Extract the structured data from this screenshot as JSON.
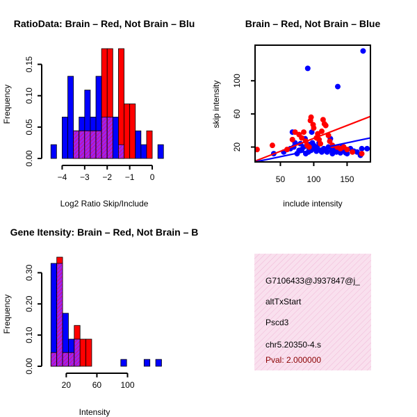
{
  "colors": {
    "red": "#ff0000",
    "blue": "#0000ff",
    "purple": "#a020f0",
    "info_bg": "#f7d7ea",
    "pval": "#8b0000"
  },
  "chart_data": [
    {
      "type": "bar",
      "title": "RatioData: Brain – Red, Not Brain – Blu",
      "xlabel": "Log2 Ratio Skip/Include",
      "ylabel": "Frequency",
      "xlim": [
        -4.6,
        0.4
      ],
      "ylim": [
        0,
        0.175
      ],
      "xticks": [
        -4,
        -3,
        -2,
        -1,
        0
      ],
      "xtick_labels": [
        "−4",
        "−3",
        "−2",
        "−1",
        "0"
      ],
      "yticks": [
        0.0,
        0.05,
        0.1,
        0.15
      ],
      "ytick_labels": [
        "0.00",
        "0.05",
        "0.10",
        "0.15"
      ],
      "bin_width": 0.25,
      "bin_start": -4.5,
      "series": [
        {
          "name": "Not Brain",
          "color": "blue",
          "values": [
            0.022,
            0,
            0.066,
            0.131,
            0.044,
            0.066,
            0.109,
            0.066,
            0.131,
            0.066,
            0.066,
            0.066,
            0.022,
            0,
            0,
            0.044,
            0.022,
            0,
            0,
            0.022
          ]
        },
        {
          "name": "Brain",
          "color": "red",
          "values": [
            0,
            0,
            0,
            0,
            0.044,
            0.044,
            0.044,
            0.044,
            0.044,
            0.175,
            0.175,
            0,
            0.175,
            0.087,
            0.087,
            0,
            0,
            0.044,
            0,
            0
          ]
        }
      ]
    },
    {
      "type": "scatter",
      "title": "Brain – Red, Not Brain – Blue",
      "xlabel": "include intensity",
      "ylabel": "skip intensity",
      "xlim": [
        12,
        185
      ],
      "ylim": [
        2,
        143
      ],
      "xticks": [
        50,
        100,
        150
      ],
      "xtick_labels": [
        "50",
        "100",
        "150"
      ],
      "yticks": [
        20,
        60,
        100
      ],
      "ytick_labels": [
        "20",
        "60",
        "100"
      ],
      "series": [
        {
          "name": "Brain",
          "color": "red",
          "points": [
            [
              15,
              17
            ],
            [
              38,
              22
            ],
            [
              60,
              17
            ],
            [
              68,
              29
            ],
            [
              72,
              38
            ],
            [
              78,
              35
            ],
            [
              82,
              31
            ],
            [
              85,
              38
            ],
            [
              88,
              27
            ],
            [
              90,
              22
            ],
            [
              93,
              20
            ],
            [
              95,
              52
            ],
            [
              96,
              56
            ],
            [
              99,
              47
            ],
            [
              100,
              43
            ],
            [
              104,
              31
            ],
            [
              106,
              36
            ],
            [
              108,
              29
            ],
            [
              110,
              24
            ],
            [
              112,
              39
            ],
            [
              114,
              53
            ],
            [
              116,
              48
            ],
            [
              118,
              46
            ],
            [
              122,
              34
            ],
            [
              124,
              27
            ],
            [
              128,
              22
            ],
            [
              135,
              20
            ],
            [
              140,
              18
            ],
            [
              145,
              20
            ],
            [
              150,
              17
            ],
            [
              158,
              14
            ],
            [
              172,
              12
            ]
          ],
          "fit": [
            [
              12,
              3
            ],
            [
              185,
              57
            ]
          ]
        },
        {
          "name": "Not Brain",
          "color": "blue",
          "points": [
            [
              40,
              12
            ],
            [
              55,
              14
            ],
            [
              65,
              18
            ],
            [
              68,
              38
            ],
            [
              70,
              20
            ],
            [
              72,
              25
            ],
            [
              75,
              12
            ],
            [
              78,
              16
            ],
            [
              80,
              24
            ],
            [
              82,
              17
            ],
            [
              85,
              20
            ],
            [
              87,
              30
            ],
            [
              88,
              12
            ],
            [
              90,
              22
            ],
            [
              91,
              115
            ],
            [
              92,
              14
            ],
            [
              93,
              18
            ],
            [
              94,
              23
            ],
            [
              95,
              20
            ],
            [
              96,
              16
            ],
            [
              97,
              38
            ],
            [
              98,
              25
            ],
            [
              100,
              22
            ],
            [
              102,
              18
            ],
            [
              104,
              15
            ],
            [
              105,
              20
            ],
            [
              108,
              25
            ],
            [
              110,
              16
            ],
            [
              112,
              14
            ],
            [
              115,
              18
            ],
            [
              118,
              16
            ],
            [
              120,
              14
            ],
            [
              122,
              20
            ],
            [
              125,
              30
            ],
            [
              127,
              16
            ],
            [
              128,
              12
            ],
            [
              130,
              15
            ],
            [
              132,
              18
            ],
            [
              134,
              14
            ],
            [
              136,
              93
            ],
            [
              138,
              16
            ],
            [
              140,
              13
            ],
            [
              142,
              20
            ],
            [
              145,
              16
            ],
            [
              148,
              13
            ],
            [
              150,
              12
            ],
            [
              155,
              18
            ],
            [
              160,
              15
            ],
            [
              165,
              14
            ],
            [
              170,
              10
            ],
            [
              172,
              18
            ],
            [
              174,
              136
            ],
            [
              180,
              18
            ]
          ],
          "fit": [
            [
              12,
              2
            ],
            [
              185,
              31
            ]
          ]
        }
      ]
    },
    {
      "type": "bar",
      "title": "Gene Itensity: Brain – Red, Not Brain – B",
      "xlabel": "Intensity",
      "ylabel": "Frequency",
      "xlim": [
        -3,
        144
      ],
      "ylim": [
        0,
        0.35
      ],
      "xticks": [
        20,
        60,
        100
      ],
      "xtick_labels": [
        "20",
        "60",
        "100"
      ],
      "yticks": [
        0.0,
        0.1,
        0.2,
        0.3
      ],
      "ytick_labels": [
        "0.00",
        "0.10",
        "0.20",
        "0.30"
      ],
      "bin_width": 7.6,
      "bin_start": 0,
      "series": [
        {
          "name": "Not Brain",
          "color": "blue",
          "values": [
            0.33,
            0.33,
            0.17,
            0.087,
            0.087,
            0,
            0,
            0,
            0,
            0,
            0,
            0,
            0.022,
            0,
            0,
            0,
            0.022,
            0,
            0.022
          ]
        },
        {
          "name": "Brain",
          "color": "red",
          "values": [
            0.044,
            0.35,
            0.044,
            0.044,
            0.131,
            0.087,
            0.087,
            0,
            0,
            0,
            0,
            0,
            0,
            0,
            0,
            0,
            0,
            0,
            0
          ]
        }
      ]
    }
  ],
  "info_panel": {
    "lines": [
      "G7106433@J937847@j_",
      "altTxStart",
      "Pscd3",
      "chr5.20350-4.s"
    ],
    "pval": "Pval: 2.000000"
  }
}
